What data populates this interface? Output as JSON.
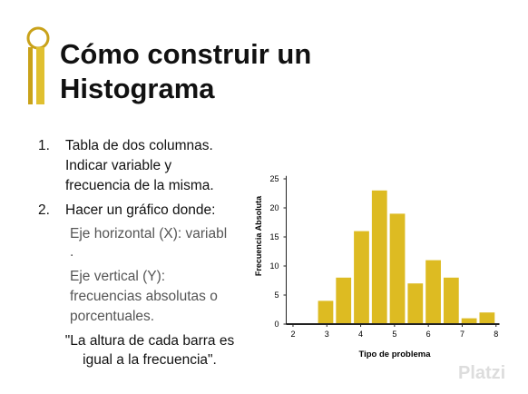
{
  "slide": {
    "title_line1": "Cómo construir un",
    "title_line2": "Histograma",
    "items": [
      {
        "marker": "1.",
        "lines": [
          "Tabla de dos columnas.",
          "Indicar variable y",
          "frecuencia de la misma."
        ]
      },
      {
        "marker": "2.",
        "lines": [
          "Hacer un gráfico donde:"
        ]
      }
    ],
    "sub_items": [
      [
        "Eje horizontal (X): variabl",
        "."
      ],
      [
        "Eje vertical (Y):",
        "frecuencias absolutas o",
        "porcentuales."
      ]
    ],
    "quote": [
      "\"La altura de cada barra es",
      "igual a la frecuencia\"."
    ],
    "watermark": "Platzi"
  },
  "chart_data": {
    "type": "histogram",
    "xlabel": "Tipo de problema",
    "ylabel": "Frecuencia Absoluta",
    "bins": [
      2.7,
      3.23,
      3.76,
      4.29,
      4.82,
      5.35,
      5.88,
      6.41,
      6.94,
      7.47,
      8.0
    ],
    "values": [
      4,
      8,
      16,
      23,
      19,
      7,
      11,
      8,
      1,
      2
    ],
    "color": "#ddbb22",
    "xlim": [
      1.8,
      8.1
    ],
    "ylim": [
      0,
      25.5
    ],
    "xticks": [
      2,
      3,
      4,
      5,
      6,
      7,
      8
    ],
    "yticks": [
      0,
      5,
      10,
      15,
      20,
      25
    ]
  }
}
